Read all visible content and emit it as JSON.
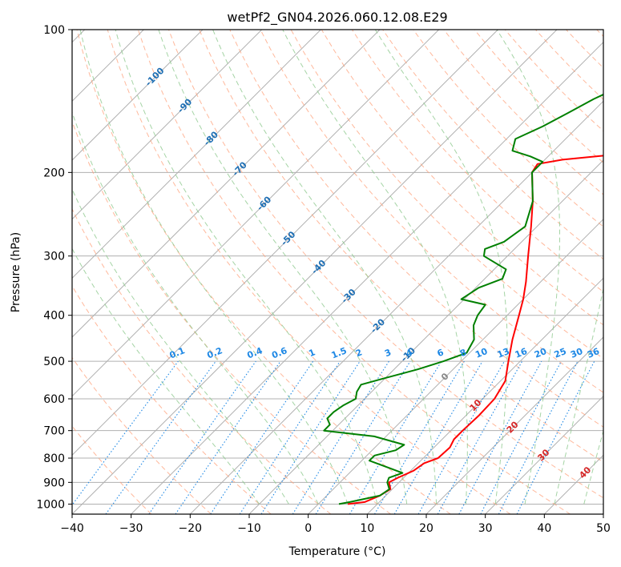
{
  "colors": {
    "temperature": "#ff0000",
    "dewpoint": "#008000",
    "isotherm": "#b0b0b0",
    "dry_adiabat": "#ffa07a",
    "moist_adiabat": "#8fc98f",
    "mixing_ratio": "#1e88e5",
    "isotherm_label": "#1f6fb4",
    "dry_adiabat_label": "#d62728",
    "grid": "#b0b0b0"
  },
  "chart_data": {
    "type": "line",
    "subtype": "skew-t log-p",
    "title": "wetPf2_GN04.2026.060.12.08.E29",
    "xlabel": "Temperature (°C)",
    "ylabel": "Pressure (hPa)",
    "xlim": [
      -40,
      50
    ],
    "ylim": [
      1050,
      100
    ],
    "y_scale": "log",
    "x_ticks": [
      -40,
      -30,
      -20,
      -10,
      0,
      10,
      20,
      30,
      40,
      50
    ],
    "x_tick_labels": [
      "−40",
      "−30",
      "−20",
      "−10",
      "0",
      "10",
      "20",
      "30",
      "40",
      "50"
    ],
    "y_ticks": [
      100,
      200,
      300,
      400,
      500,
      600,
      700,
      800,
      900,
      1000
    ],
    "y_tick_labels": [
      "100",
      "200",
      "300",
      "400",
      "500",
      "600",
      "700",
      "800",
      "900",
      "1000"
    ],
    "grid": true,
    "series": [
      {
        "key": "temperature",
        "points": [
          [
            1000,
            5
          ],
          [
            990,
            7.5
          ],
          [
            960,
            9
          ],
          [
            930,
            9.7
          ],
          [
            900,
            8.3
          ],
          [
            880,
            9
          ],
          [
            850,
            10.5
          ],
          [
            820,
            11
          ],
          [
            800,
            12.5
          ],
          [
            760,
            12.7
          ],
          [
            730,
            12
          ],
          [
            700,
            12
          ],
          [
            650,
            12.2
          ],
          [
            600,
            12
          ],
          [
            550,
            10.8
          ],
          [
            500,
            8
          ],
          [
            450,
            5
          ],
          [
            400,
            2
          ],
          [
            370,
            0
          ],
          [
            340,
            -2.5
          ],
          [
            300,
            -6.5
          ],
          [
            260,
            -11
          ],
          [
            230,
            -15
          ],
          [
            200,
            -20
          ],
          [
            192,
            -20.5
          ],
          [
            188,
            -17
          ],
          [
            180,
            -3
          ],
          [
            175,
            1
          ],
          [
            165,
            4.5
          ],
          [
            160,
            5
          ],
          [
            150,
            5
          ],
          [
            140,
            5
          ],
          [
            130,
            5.5
          ],
          [
            120,
            8
          ],
          [
            110,
            10
          ],
          [
            100,
            11
          ]
        ]
      },
      {
        "key": "dewpoint",
        "points": [
          [
            1000,
            3.5
          ],
          [
            990,
            5
          ],
          [
            960,
            9
          ],
          [
            930,
            9.5
          ],
          [
            900,
            8
          ],
          [
            880,
            7.5
          ],
          [
            860,
            9
          ],
          [
            840,
            6
          ],
          [
            810,
            1.3
          ],
          [
            790,
            1.3
          ],
          [
            770,
            4
          ],
          [
            750,
            4.5
          ],
          [
            720,
            -2
          ],
          [
            700,
            -11.5
          ],
          [
            680,
            -11.5
          ],
          [
            660,
            -13
          ],
          [
            640,
            -13
          ],
          [
            620,
            -12.5
          ],
          [
            600,
            -11.5
          ],
          [
            580,
            -12.5
          ],
          [
            560,
            -13
          ],
          [
            545,
            -10.5
          ],
          [
            520,
            -6
          ],
          [
            500,
            -3
          ],
          [
            480,
            -0.5
          ],
          [
            450,
            -1.5
          ],
          [
            420,
            -4
          ],
          [
            400,
            -5
          ],
          [
            380,
            -5.5
          ],
          [
            370,
            -10.5
          ],
          [
            350,
            -9.5
          ],
          [
            335,
            -7
          ],
          [
            320,
            -8
          ],
          [
            300,
            -14
          ],
          [
            290,
            -15
          ],
          [
            280,
            -13
          ],
          [
            260,
            -12
          ],
          [
            230,
            -15
          ],
          [
            200,
            -20
          ],
          [
            190,
            -20
          ],
          [
            185,
            -23
          ],
          [
            180,
            -27
          ],
          [
            170,
            -28.5
          ],
          [
            160,
            -26
          ],
          [
            150,
            -24
          ],
          [
            140,
            -22
          ],
          [
            130,
            -19
          ],
          [
            120,
            -16
          ],
          [
            110,
            -13
          ],
          [
            100,
            -11
          ]
        ]
      }
    ],
    "annotations": {
      "isotherm_labels": [
        "-100",
        "-90",
        "-80",
        "-70",
        "-60",
        "-50",
        "-40",
        "-30",
        "-20",
        "-10"
      ],
      "isotherm_zero_label": "0",
      "dry_adiabat_labels": [
        "10",
        "20",
        "30",
        "40"
      ],
      "mixing_ratio_labels": [
        "0.1",
        "0.2",
        "0.4",
        "0.6",
        "1",
        "1.5",
        "2",
        "3",
        "4",
        "6",
        "8",
        "10",
        "13",
        "16",
        "20",
        "25",
        "30",
        "36"
      ]
    }
  }
}
